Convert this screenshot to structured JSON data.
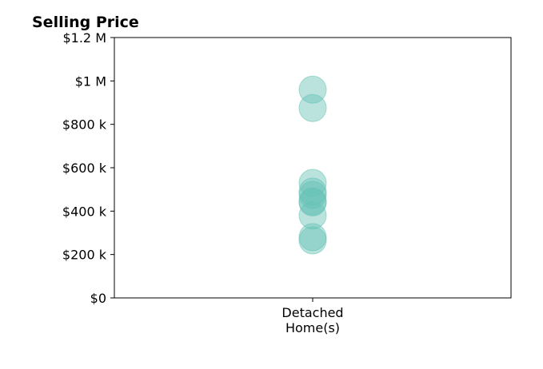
{
  "chart_data": {
    "type": "scatter",
    "title": "Selling Price",
    "categories": [
      "Detached\nHome(s)"
    ],
    "series": [
      {
        "values": [
          960000,
          875000,
          530000,
          490000,
          475000,
          445000,
          440000,
          380000,
          280000,
          265000
        ]
      }
    ],
    "yticks": [
      {
        "value": 0,
        "label": "$0"
      },
      {
        "value": 200000,
        "label": "$200 k"
      },
      {
        "value": 400000,
        "label": "$400 k"
      },
      {
        "value": 600000,
        "label": "$600 k"
      },
      {
        "value": 800000,
        "label": "$800 k"
      },
      {
        "value": 1000000,
        "label": "$1 M"
      },
      {
        "value": 1200000,
        "label": "$1.2 M"
      }
    ],
    "ylim": [
      0,
      1200000
    ],
    "grid": false,
    "colors": {
      "marker": "#66c2b5",
      "axis": "#000000"
    }
  }
}
